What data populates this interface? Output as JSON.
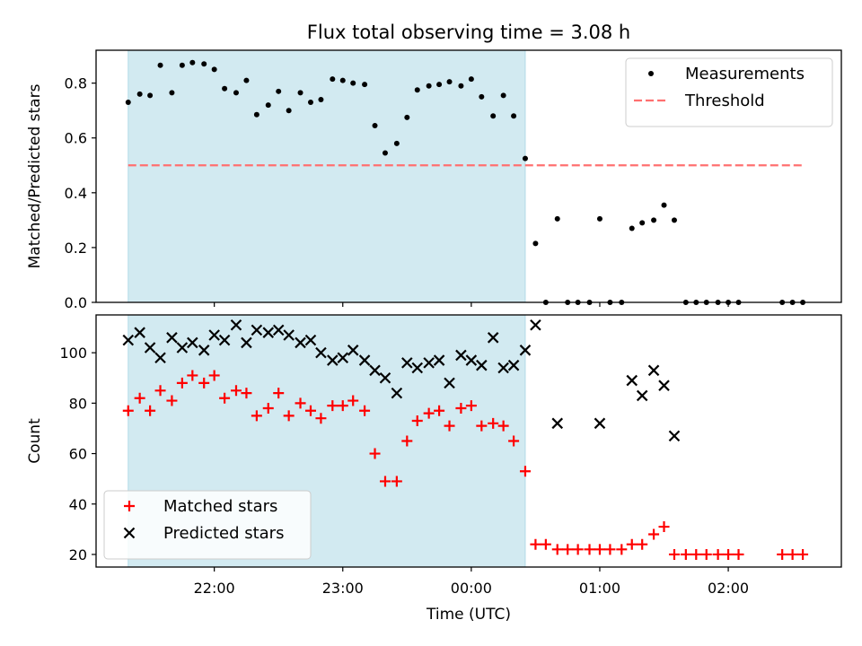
{
  "chart_data": {
    "title": "Flux total observing time = 3.08 h",
    "xlabel": "Time (UTC)",
    "x_unit": "UTC time, hours (24 = 00:00 next day)",
    "xlim": [
      21.08,
      26.88
    ],
    "xticks": [
      {
        "value": 22,
        "label": "22:00"
      },
      {
        "value": 23,
        "label": "23:00"
      },
      {
        "value": 24,
        "label": "00:00"
      },
      {
        "value": 25,
        "label": "01:00"
      },
      {
        "value": 26,
        "label": "02:00"
      }
    ],
    "shaded_region": {
      "x": [
        21.33,
        24.42
      ],
      "color": "#add8e6"
    },
    "panels": [
      {
        "type": "scatter",
        "ylabel": "Matched/Predicted stars",
        "ylim": [
          0,
          0.92
        ],
        "yticks": [
          {
            "value": 0.0,
            "label": "0.0"
          },
          {
            "value": 0.2,
            "label": "0.2"
          },
          {
            "value": 0.4,
            "label": "0.4"
          },
          {
            "value": 0.6,
            "label": "0.6"
          },
          {
            "value": 0.8,
            "label": "0.8"
          }
        ],
        "legend": {
          "position": "top-right"
        },
        "series": [
          {
            "name": "Measurements",
            "marker": "dot",
            "color": "#000000",
            "points": [
              [
                21.33,
                0.73
              ],
              [
                21.42,
                0.76
              ],
              [
                21.5,
                0.755
              ],
              [
                21.58,
                0.865
              ],
              [
                21.67,
                0.765
              ],
              [
                21.75,
                0.865
              ],
              [
                21.83,
                0.875
              ],
              [
                21.92,
                0.87
              ],
              [
                22.0,
                0.85
              ],
              [
                22.08,
                0.78
              ],
              [
                22.17,
                0.765
              ],
              [
                22.25,
                0.81
              ],
              [
                22.33,
                0.685
              ],
              [
                22.42,
                0.72
              ],
              [
                22.5,
                0.77
              ],
              [
                22.58,
                0.7
              ],
              [
                22.67,
                0.765
              ],
              [
                22.75,
                0.73
              ],
              [
                22.83,
                0.74
              ],
              [
                22.92,
                0.815
              ],
              [
                23.0,
                0.81
              ],
              [
                23.08,
                0.8
              ],
              [
                23.17,
                0.795
              ],
              [
                23.25,
                0.645
              ],
              [
                23.33,
                0.545
              ],
              [
                23.42,
                0.58
              ],
              [
                23.5,
                0.675
              ],
              [
                23.58,
                0.775
              ],
              [
                23.67,
                0.79
              ],
              [
                23.75,
                0.795
              ],
              [
                23.83,
                0.805
              ],
              [
                23.92,
                0.79
              ],
              [
                24.0,
                0.815
              ],
              [
                24.08,
                0.75
              ],
              [
                24.17,
                0.68
              ],
              [
                24.25,
                0.755
              ],
              [
                24.33,
                0.68
              ],
              [
                24.42,
                0.525
              ],
              [
                24.5,
                0.215
              ],
              [
                24.58,
                0.0
              ],
              [
                24.67,
                0.305
              ],
              [
                24.75,
                0.0
              ],
              [
                24.83,
                0.0
              ],
              [
                24.92,
                0.0
              ],
              [
                25.0,
                0.305
              ],
              [
                25.08,
                0.0
              ],
              [
                25.17,
                0.0
              ],
              [
                25.25,
                0.27
              ],
              [
                25.33,
                0.29
              ],
              [
                25.42,
                0.3
              ],
              [
                25.5,
                0.355
              ],
              [
                25.58,
                0.3
              ],
              [
                25.67,
                0.0
              ],
              [
                25.75,
                0.0
              ],
              [
                25.83,
                0.0
              ],
              [
                25.92,
                0.0
              ],
              [
                26.0,
                0.0
              ],
              [
                26.08,
                0.0
              ],
              [
                26.42,
                0.0
              ],
              [
                26.5,
                0.0
              ],
              [
                26.58,
                0.0
              ]
            ]
          },
          {
            "name": "Threshold",
            "type": "line",
            "style": "dashed",
            "color": "#ff7070",
            "points": [
              [
                21.33,
                0.5
              ],
              [
                26.58,
                0.5
              ]
            ]
          }
        ]
      },
      {
        "type": "scatter",
        "ylabel": "Count",
        "ylim": [
          15,
          115
        ],
        "yticks": [
          {
            "value": 20,
            "label": "20"
          },
          {
            "value": 40,
            "label": "40"
          },
          {
            "value": 60,
            "label": "60"
          },
          {
            "value": 80,
            "label": "80"
          },
          {
            "value": 100,
            "label": "100"
          }
        ],
        "legend": {
          "position": "bottom-left"
        },
        "series": [
          {
            "name": "Matched stars",
            "marker": "plus",
            "color": "#ff0000",
            "points": [
              [
                21.33,
                77
              ],
              [
                21.42,
                82
              ],
              [
                21.5,
                77
              ],
              [
                21.58,
                85
              ],
              [
                21.67,
                81
              ],
              [
                21.75,
                88
              ],
              [
                21.83,
                91
              ],
              [
                21.92,
                88
              ],
              [
                22.0,
                91
              ],
              [
                22.08,
                82
              ],
              [
                22.17,
                85
              ],
              [
                22.25,
                84
              ],
              [
                22.33,
                75
              ],
              [
                22.42,
                78
              ],
              [
                22.5,
                84
              ],
              [
                22.58,
                75
              ],
              [
                22.67,
                80
              ],
              [
                22.75,
                77
              ],
              [
                22.83,
                74
              ],
              [
                22.92,
                79
              ],
              [
                23.0,
                79
              ],
              [
                23.08,
                81
              ],
              [
                23.17,
                77
              ],
              [
                23.25,
                60
              ],
              [
                23.33,
                49
              ],
              [
                23.42,
                49
              ],
              [
                23.5,
                65
              ],
              [
                23.58,
                73
              ],
              [
                23.67,
                76
              ],
              [
                23.75,
                77
              ],
              [
                23.83,
                71
              ],
              [
                23.92,
                78
              ],
              [
                24.0,
                79
              ],
              [
                24.08,
                71
              ],
              [
                24.17,
                72
              ],
              [
                24.25,
                71
              ],
              [
                24.33,
                65
              ],
              [
                24.42,
                53
              ],
              [
                24.5,
                24
              ],
              [
                24.58,
                24
              ],
              [
                24.67,
                22
              ],
              [
                24.75,
                22
              ],
              [
                24.83,
                22
              ],
              [
                24.92,
                22
              ],
              [
                25.0,
                22
              ],
              [
                25.08,
                22
              ],
              [
                25.17,
                22
              ],
              [
                25.25,
                24
              ],
              [
                25.33,
                24
              ],
              [
                25.42,
                28
              ],
              [
                25.5,
                31
              ],
              [
                25.58,
                20
              ],
              [
                25.67,
                20
              ],
              [
                25.75,
                20
              ],
              [
                25.83,
                20
              ],
              [
                25.92,
                20
              ],
              [
                26.0,
                20
              ],
              [
                26.08,
                20
              ],
              [
                26.42,
                20
              ],
              [
                26.5,
                20
              ],
              [
                26.58,
                20
              ]
            ]
          },
          {
            "name": "Predicted stars",
            "marker": "x",
            "color": "#000000",
            "points": [
              [
                21.33,
                105
              ],
              [
                21.42,
                108
              ],
              [
                21.5,
                102
              ],
              [
                21.58,
                98
              ],
              [
                21.67,
                106
              ],
              [
                21.75,
                102
              ],
              [
                21.83,
                104
              ],
              [
                21.92,
                101
              ],
              [
                22.0,
                107
              ],
              [
                22.08,
                105
              ],
              [
                22.17,
                111
              ],
              [
                22.25,
                104
              ],
              [
                22.33,
                109
              ],
              [
                22.42,
                108
              ],
              [
                22.5,
                109
              ],
              [
                22.58,
                107
              ],
              [
                22.67,
                104
              ],
              [
                22.75,
                105
              ],
              [
                22.83,
                100
              ],
              [
                22.92,
                97
              ],
              [
                23.0,
                98
              ],
              [
                23.08,
                101
              ],
              [
                23.17,
                97
              ],
              [
                23.25,
                93
              ],
              [
                23.33,
                90
              ],
              [
                23.42,
                84
              ],
              [
                23.5,
                96
              ],
              [
                23.58,
                94
              ],
              [
                23.67,
                96
              ],
              [
                23.75,
                97
              ],
              [
                23.83,
                88
              ],
              [
                23.92,
                99
              ],
              [
                24.0,
                97
              ],
              [
                24.08,
                95
              ],
              [
                24.17,
                106
              ],
              [
                24.25,
                94
              ],
              [
                24.33,
                95
              ],
              [
                24.42,
                101
              ],
              [
                24.5,
                111
              ],
              [
                24.67,
                72
              ],
              [
                25.0,
                72
              ],
              [
                25.25,
                89
              ],
              [
                25.33,
                83
              ],
              [
                25.42,
                93
              ],
              [
                25.5,
                87
              ],
              [
                25.58,
                67
              ]
            ]
          }
        ]
      }
    ]
  }
}
